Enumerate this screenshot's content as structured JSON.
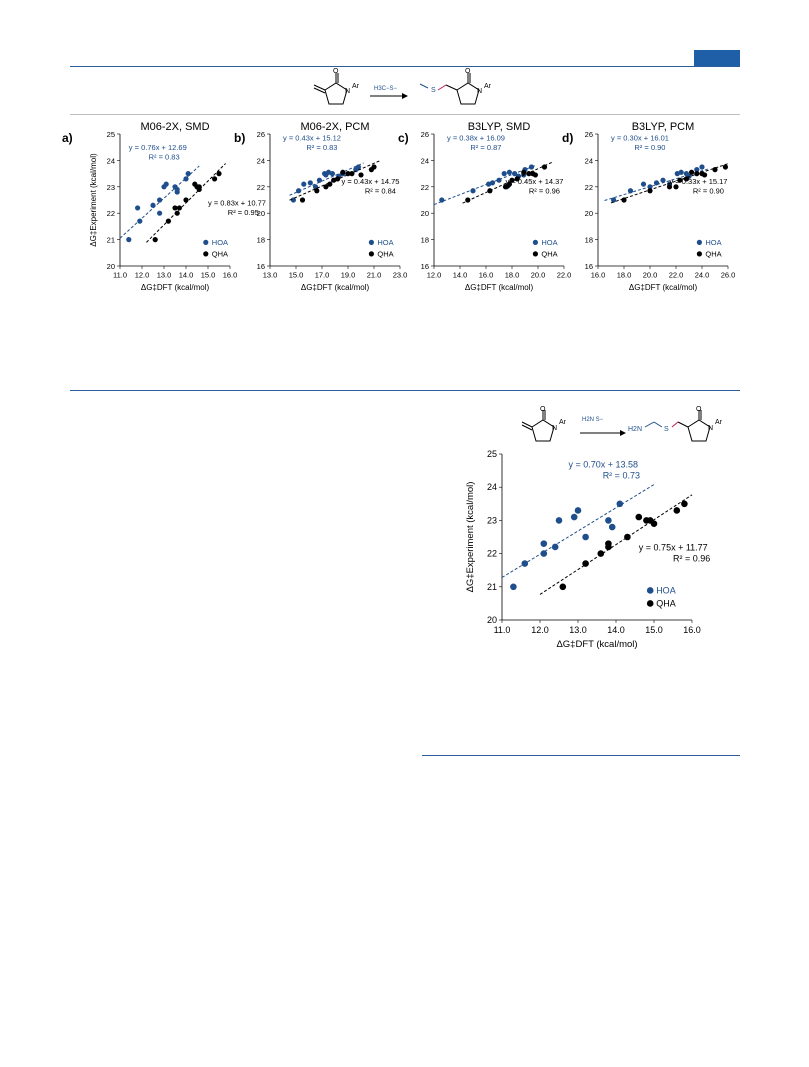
{
  "colors": {
    "accent": "#1f5fa8",
    "hoa": "#1f4e8c",
    "qha": "#000000"
  },
  "scheme_top": {
    "reagent": "H3C−S−",
    "left_label": "Ar",
    "right_label": "Ar"
  },
  "scheme_bottom": {
    "reagent": "H2N S−",
    "product_prefix": "H2N",
    "product_s": "S",
    "left_label": "Ar",
    "right_label": "Ar"
  },
  "chart_data": [
    {
      "panel": "a)",
      "title": "M06-2X, SMD",
      "type": "scatter",
      "xlabel": "ΔG‡DFT (kcal/mol)",
      "ylabel": "ΔG‡Experiment (kcal/mol)",
      "xlim": [
        11.0,
        16.0
      ],
      "ylim": [
        20,
        25
      ],
      "xticks": [
        "11.0",
        "12.0",
        "13.0",
        "14.0",
        "15.0",
        "16.0"
      ],
      "yticks": [
        "20",
        "21",
        "22",
        "23",
        "24",
        "25"
      ],
      "legend": [
        "HOA",
        "QHA"
      ],
      "series": [
        {
          "name": "HOA",
          "eq": "y = 0.76x + 12.69",
          "r2": "R² = 0.83",
          "slope": 0.76,
          "intercept": 12.69,
          "fit_x": [
            11.0,
            14.6
          ],
          "points": [
            [
              11.4,
              21.0
            ],
            [
              11.9,
              21.7
            ],
            [
              11.8,
              22.2
            ],
            [
              12.5,
              22.3
            ],
            [
              12.8,
              22.0
            ],
            [
              12.8,
              22.5
            ],
            [
              13.0,
              23.0
            ],
            [
              13.1,
              23.1
            ],
            [
              13.5,
              23.0
            ],
            [
              13.6,
              22.8
            ],
            [
              14.0,
              23.3
            ],
            [
              14.1,
              23.5
            ],
            [
              13.6,
              22.9
            ]
          ]
        },
        {
          "name": "QHA",
          "eq": "y = 0.83x + 10.77",
          "r2": "R² = 0.95",
          "slope": 0.83,
          "intercept": 10.77,
          "fit_x": [
            12.2,
            15.8
          ],
          "points": [
            [
              12.6,
              21.0
            ],
            [
              13.2,
              21.7
            ],
            [
              13.6,
              22.0
            ],
            [
              13.7,
              22.2
            ],
            [
              13.5,
              22.2
            ],
            [
              14.0,
              22.5
            ],
            [
              14.4,
              23.1
            ],
            [
              14.5,
              23.0
            ],
            [
              14.6,
              23.0
            ],
            [
              14.6,
              22.9
            ],
            [
              15.3,
              23.3
            ],
            [
              15.5,
              23.5
            ]
          ]
        }
      ]
    },
    {
      "panel": "b)",
      "title": "M06-2X, PCM",
      "type": "scatter",
      "xlabel": "ΔG‡DFT (kcal/mol)",
      "ylabel": "",
      "xlim": [
        13.0,
        23.0
      ],
      "ylim": [
        16,
        26
      ],
      "xticks": [
        "13.0",
        "15.0",
        "17.0",
        "19.0",
        "21.0",
        "23.0"
      ],
      "yticks": [
        "16",
        "18",
        "20",
        "22",
        "24",
        "26"
      ],
      "legend": [
        "HOA",
        "QHA"
      ],
      "series": [
        {
          "name": "HOA",
          "eq": "y = 0.43x + 15.12",
          "r2": "R² = 0.83",
          "slope": 0.43,
          "intercept": 15.12,
          "fit_x": [
            14.5,
            20.2
          ],
          "points": [
            [
              14.8,
              21.0
            ],
            [
              15.2,
              21.7
            ],
            [
              15.6,
              22.2
            ],
            [
              16.1,
              22.3
            ],
            [
              16.5,
              22.0
            ],
            [
              16.8,
              22.5
            ],
            [
              17.2,
              23.0
            ],
            [
              17.5,
              23.1
            ],
            [
              17.8,
              23.0
            ],
            [
              18.3,
              22.8
            ],
            [
              18.6,
              23.0
            ],
            [
              19.6,
              23.3
            ],
            [
              19.8,
              23.5
            ],
            [
              17.3,
              22.9
            ]
          ]
        },
        {
          "name": "QHA",
          "eq": "y = 0.43x + 14.75",
          "r2": "R² = 0.84",
          "slope": 0.43,
          "intercept": 14.75,
          "fit_x": [
            14.5,
            21.5
          ],
          "points": [
            [
              15.5,
              21.0
            ],
            [
              16.6,
              21.7
            ],
            [
              17.3,
              22.0
            ],
            [
              17.6,
              22.2
            ],
            [
              17.9,
              22.5
            ],
            [
              18.2,
              22.6
            ],
            [
              18.6,
              23.1
            ],
            [
              19.0,
              23.0
            ],
            [
              19.3,
              23.0
            ],
            [
              20.0,
              22.9
            ],
            [
              20.8,
              23.3
            ],
            [
              21.0,
              23.5
            ]
          ]
        }
      ]
    },
    {
      "panel": "c)",
      "title": "B3LYP, SMD",
      "type": "scatter",
      "xlabel": "ΔG‡DFT (kcal/mol)",
      "ylabel": "",
      "xlim": [
        12.0,
        22.0
      ],
      "ylim": [
        16,
        26
      ],
      "xticks": [
        "12.0",
        "14.0",
        "16.0",
        "18.0",
        "20.0",
        "22.0"
      ],
      "yticks": [
        "16",
        "18",
        "20",
        "22",
        "24",
        "26"
      ],
      "legend": [
        "HOA",
        "QHA"
      ],
      "series": [
        {
          "name": "HOA",
          "eq": "y = 0.38x + 16.09",
          "r2": "R² = 0.87",
          "slope": 0.38,
          "intercept": 16.09,
          "fit_x": [
            12.0,
            19.8
          ],
          "points": [
            [
              12.6,
              21.0
            ],
            [
              15.0,
              21.7
            ],
            [
              16.2,
              22.2
            ],
            [
              16.5,
              22.3
            ],
            [
              17.0,
              22.5
            ],
            [
              17.4,
              23.0
            ],
            [
              17.8,
              23.1
            ],
            [
              18.2,
              23.0
            ],
            [
              18.5,
              22.8
            ],
            [
              19.0,
              23.3
            ],
            [
              19.5,
              23.5
            ],
            [
              17.6,
              22.0
            ],
            [
              18.9,
              22.9
            ]
          ]
        },
        {
          "name": "QHA",
          "eq": "y = 0.45x + 14.37",
          "r2": "R² = 0.96",
          "slope": 0.45,
          "intercept": 14.37,
          "fit_x": [
            14.2,
            21.2
          ],
          "points": [
            [
              14.6,
              21.0
            ],
            [
              16.3,
              21.7
            ],
            [
              17.5,
              22.0
            ],
            [
              17.8,
              22.2
            ],
            [
              18.0,
              22.5
            ],
            [
              18.4,
              22.6
            ],
            [
              18.9,
              23.1
            ],
            [
              19.3,
              23.0
            ],
            [
              19.6,
              23.0
            ],
            [
              19.8,
              22.9
            ],
            [
              20.5,
              23.5
            ],
            [
              17.7,
              22.1
            ]
          ]
        }
      ]
    },
    {
      "panel": "d)",
      "title": "B3LYP, PCM",
      "type": "scatter",
      "xlabel": "ΔG‡DFT (kcal/mol)",
      "ylabel": "",
      "xlim": [
        16.0,
        26.0
      ],
      "ylim": [
        16,
        26
      ],
      "xticks": [
        "16.0",
        "18.0",
        "20.0",
        "22.0",
        "24.0",
        "26.0"
      ],
      "yticks": [
        "16",
        "18",
        "20",
        "22",
        "24",
        "26"
      ],
      "legend": [
        "HOA",
        "QHA"
      ],
      "series": [
        {
          "name": "HOA",
          "eq": "y = 0.30x + 16.01",
          "r2": "R² = 0.90",
          "slope": 0.3,
          "intercept": 16.01,
          "fit_x": [
            16.5,
            24.5
          ],
          "points": [
            [
              17.2,
              21.0
            ],
            [
              18.5,
              21.7
            ],
            [
              19.5,
              22.2
            ],
            [
              20.0,
              22.0
            ],
            [
              20.5,
              22.3
            ],
            [
              21.0,
              22.5
            ],
            [
              22.1,
              23.0
            ],
            [
              22.4,
              23.1
            ],
            [
              22.8,
              23.0
            ],
            [
              23.0,
              22.8
            ],
            [
              23.6,
              23.3
            ],
            [
              24.0,
              23.5
            ],
            [
              21.5,
              22.2
            ]
          ]
        },
        {
          "name": "QHA",
          "eq": "y = 0.33x + 15.17",
          "r2": "R² = 0.90",
          "slope": 0.33,
          "intercept": 15.17,
          "fit_x": [
            17.0,
            26.0
          ],
          "points": [
            [
              18.0,
              21.0
            ],
            [
              20.0,
              21.7
            ],
            [
              21.5,
              22.0
            ],
            [
              22.0,
              22.0
            ],
            [
              22.3,
              22.5
            ],
            [
              22.8,
              22.6
            ],
            [
              23.2,
              23.1
            ],
            [
              23.6,
              23.0
            ],
            [
              24.0,
              23.0
            ],
            [
              24.2,
              22.9
            ],
            [
              25.0,
              23.3
            ],
            [
              25.8,
              23.5
            ]
          ]
        }
      ]
    },
    {
      "panel": "",
      "title": "",
      "type": "scatter",
      "xlabel": "ΔG‡DFT (kcal/mol)",
      "ylabel": "ΔG‡Experiment (kcal/mol)",
      "xlim": [
        11.0,
        16.0
      ],
      "ylim": [
        20,
        25
      ],
      "xticks": [
        "11.0",
        "12.0",
        "13.0",
        "14.0",
        "15.0",
        "16.0"
      ],
      "yticks": [
        "20",
        "21",
        "22",
        "23",
        "24",
        "25"
      ],
      "legend": [
        "HOA",
        "QHA"
      ],
      "series": [
        {
          "name": "HOA",
          "eq": "y = 0.70x + 13.58",
          "r2": "R² = 0.73",
          "slope": 0.7,
          "intercept": 13.58,
          "fit_x": [
            11.0,
            15.0
          ],
          "points": [
            [
              11.3,
              21.0
            ],
            [
              11.6,
              21.7
            ],
            [
              12.1,
              22.0
            ],
            [
              12.1,
              22.3
            ],
            [
              12.4,
              22.2
            ],
            [
              12.5,
              23.0
            ],
            [
              12.9,
              23.1
            ],
            [
              13.0,
              23.3
            ],
            [
              13.2,
              22.5
            ],
            [
              13.8,
              23.0
            ],
            [
              13.9,
              22.8
            ],
            [
              14.1,
              23.5
            ]
          ]
        },
        {
          "name": "QHA",
          "eq": "y = 0.75x + 11.77",
          "r2": "R² = 0.96",
          "slope": 0.75,
          "intercept": 11.77,
          "fit_x": [
            12.0,
            16.0
          ],
          "points": [
            [
              12.6,
              21.0
            ],
            [
              13.2,
              21.7
            ],
            [
              13.6,
              22.0
            ],
            [
              13.8,
              22.2
            ],
            [
              13.8,
              22.3
            ],
            [
              14.3,
              22.5
            ],
            [
              14.6,
              23.1
            ],
            [
              14.8,
              23.0
            ],
            [
              14.9,
              23.0
            ],
            [
              15.0,
              22.9
            ],
            [
              15.6,
              23.3
            ],
            [
              15.8,
              23.5
            ]
          ]
        }
      ]
    }
  ]
}
